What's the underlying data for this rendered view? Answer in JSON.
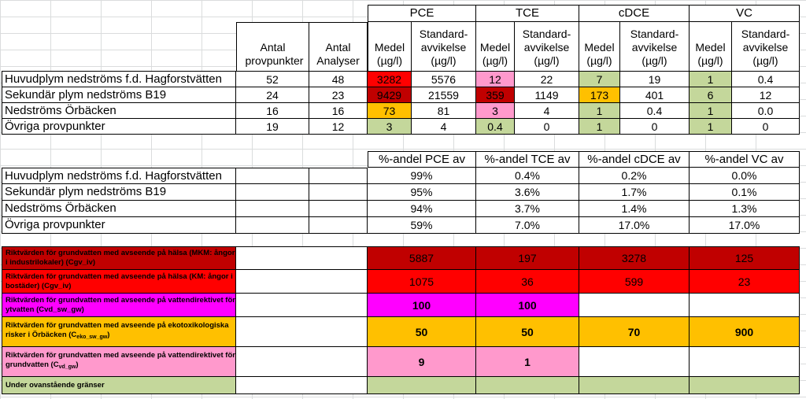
{
  "table1": {
    "groups": [
      "PCE",
      "TCE",
      "cDCE",
      "VC"
    ],
    "col_antal_prov": "Antal provpunkter",
    "col_antal_analys": "Antal Analyser",
    "col_medel_1": "Medel",
    "col_medel_2": "(µg/l)",
    "col_std_1": "Standard-",
    "col_std_2": "avvikelse",
    "col_std_3": "(µg/l)",
    "rows": [
      {
        "label": "Huvudplym nedströms f.d. Hagforstvätten",
        "prov": "52",
        "analys": "48",
        "pce_m": "3282",
        "pce_s": "5576",
        "tce_m": "12",
        "tce_s": "22",
        "cdce_m": "7",
        "cdce_s": "19",
        "vc_m": "1",
        "vc_s": "0.4"
      },
      {
        "label": "Sekundär plym nedströms B19",
        "prov": "24",
        "analys": "23",
        "pce_m": "9429",
        "pce_s": "21559",
        "tce_m": "359",
        "tce_s": "1149",
        "cdce_m": "173",
        "cdce_s": "401",
        "vc_m": "6",
        "vc_s": "12"
      },
      {
        "label": "Nedströms Örbäcken",
        "prov": "16",
        "analys": "16",
        "pce_m": "73",
        "pce_s": "81",
        "tce_m": "3",
        "tce_s": "4",
        "cdce_m": "1",
        "cdce_s": "0.4",
        "vc_m": "1",
        "vc_s": "0.0"
      },
      {
        "label": "Övriga provpunkter",
        "prov": "19",
        "analys": "12",
        "pce_m": "3",
        "pce_s": "4",
        "tce_m": "0.4",
        "tce_s": "0",
        "cdce_m": "1",
        "cdce_s": "0",
        "vc_m": "1",
        "vc_s": "0"
      }
    ]
  },
  "table2": {
    "headers": [
      "%-andel PCE av",
      "%-andel TCE av",
      "%-andel cDCE av",
      "%-andel VC av"
    ],
    "rows": [
      {
        "label": "Huvudplym nedströms f.d. Hagforstvätten",
        "pce": "99%",
        "tce": "0.4%",
        "cdce": "0.2%",
        "vc": "0.0%"
      },
      {
        "label": "Sekundär plym nedströms B19",
        "pce": "95%",
        "tce": "3.6%",
        "cdce": "1.7%",
        "vc": "0.1%"
      },
      {
        "label": "Nedströms Örbäcken",
        "pce": "94%",
        "tce": "3.7%",
        "cdce": "1.4%",
        "vc": "1.3%"
      },
      {
        "label": "Övriga provpunkter",
        "pce": "59%",
        "tce": "7.0%",
        "cdce": "17.0%",
        "vc": "17.0%"
      }
    ]
  },
  "legend": [
    {
      "label_a": "Riktvärden för grundvatten med avseende på hälsa (MKM: ångor i industrilokaler) (Cgv_iv)",
      "pce": "5887",
      "tce": "197",
      "cdce": "3278",
      "vc": "125",
      "color": "#c00000"
    },
    {
      "label_a": "Riktvärden för grundvatten med avseende på hälsa  (KM: ångor i bostäder) (Cgv_iv)",
      "pce": "1075",
      "tce": "36",
      "cdce": "599",
      "vc": "23",
      "color": "#ff0000"
    },
    {
      "label_a": "Riktvärden för grundvatten med avseende på vattendirektivet för ytvatten (Cvd_sw_gw)",
      "pce": "100",
      "tce": "100",
      "cdce": "",
      "vc": "",
      "color": "#ff00ff"
    },
    {
      "label_a": "Riktvärden för grundvatten med avseende på ekotoxikologiska risker i Örbäcken (C",
      "label_sub": "eko_sw_gw",
      "label_b": ")",
      "pce": "50",
      "tce": "50",
      "cdce": "70",
      "vc": "900",
      "color": "#ffc000"
    },
    {
      "label_a": "Riktvärden för grundvatten med avseende på vattendirektivet för grundvatten (C",
      "label_sub": "vd_gw",
      "label_b": ")",
      "pce": "9",
      "tce": "1",
      "cdce": "",
      "vc": "",
      "color": "#ff99cc"
    },
    {
      "label_a": "Under ovanstående gränser",
      "pce": "",
      "tce": "",
      "cdce": "",
      "vc": "",
      "color": "#c4d79b"
    }
  ]
}
